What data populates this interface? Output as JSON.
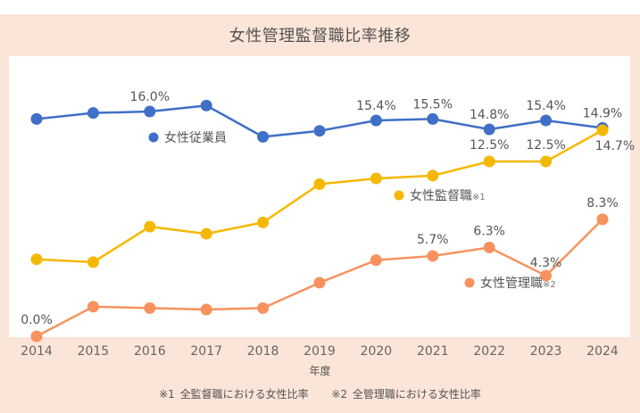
{
  "chart_data": {
    "type": "line",
    "title": "女性管理監督職比率推移",
    "xlabel": "年度",
    "ylabel": "",
    "x": [
      "2014",
      "2015",
      "2016",
      "2017",
      "2018",
      "2019",
      "2020",
      "2021",
      "2022",
      "2023",
      "2024"
    ],
    "grid": false,
    "legend_placement": "inline-near-lines",
    "series": [
      {
        "name": "女性従業員",
        "note_mark": "",
        "color": "#3f6fc6",
        "values": [
          15.5,
          15.9,
          16.0,
          16.4,
          14.3,
          14.7,
          15.4,
          15.5,
          14.8,
          15.4,
          14.9
        ],
        "labels": [
          null,
          null,
          "16.0%",
          null,
          null,
          null,
          "15.4%",
          "15.5%",
          "14.8%",
          "15.4%",
          "14.9%"
        ],
        "approximate_unlabeled": true
      },
      {
        "name": "女性監督職",
        "note_mark": "※1",
        "color": "#f5b800",
        "values": [
          5.6,
          5.4,
          7.9,
          7.4,
          8.2,
          10.9,
          11.3,
          11.5,
          12.5,
          12.5,
          14.7
        ],
        "labels": [
          null,
          null,
          null,
          null,
          null,
          null,
          null,
          null,
          "12.5%",
          "12.5%",
          "14.7%"
        ],
        "approximate_unlabeled": true
      },
      {
        "name": "女性管理職",
        "note_mark": "※2",
        "color": "#f7925e",
        "values": [
          0.0,
          2.1,
          2.0,
          1.9,
          2.0,
          3.8,
          5.4,
          5.7,
          6.3,
          4.3,
          8.3
        ],
        "labels": [
          "0.0%",
          null,
          null,
          null,
          null,
          null,
          null,
          "5.7%",
          "6.3%",
          "4.3%",
          "8.3%"
        ],
        "approximate_unlabeled": true
      }
    ],
    "footnotes": [
      "※1 全監督職における女性比率",
      "※2 全管理職における女性比率"
    ]
  }
}
